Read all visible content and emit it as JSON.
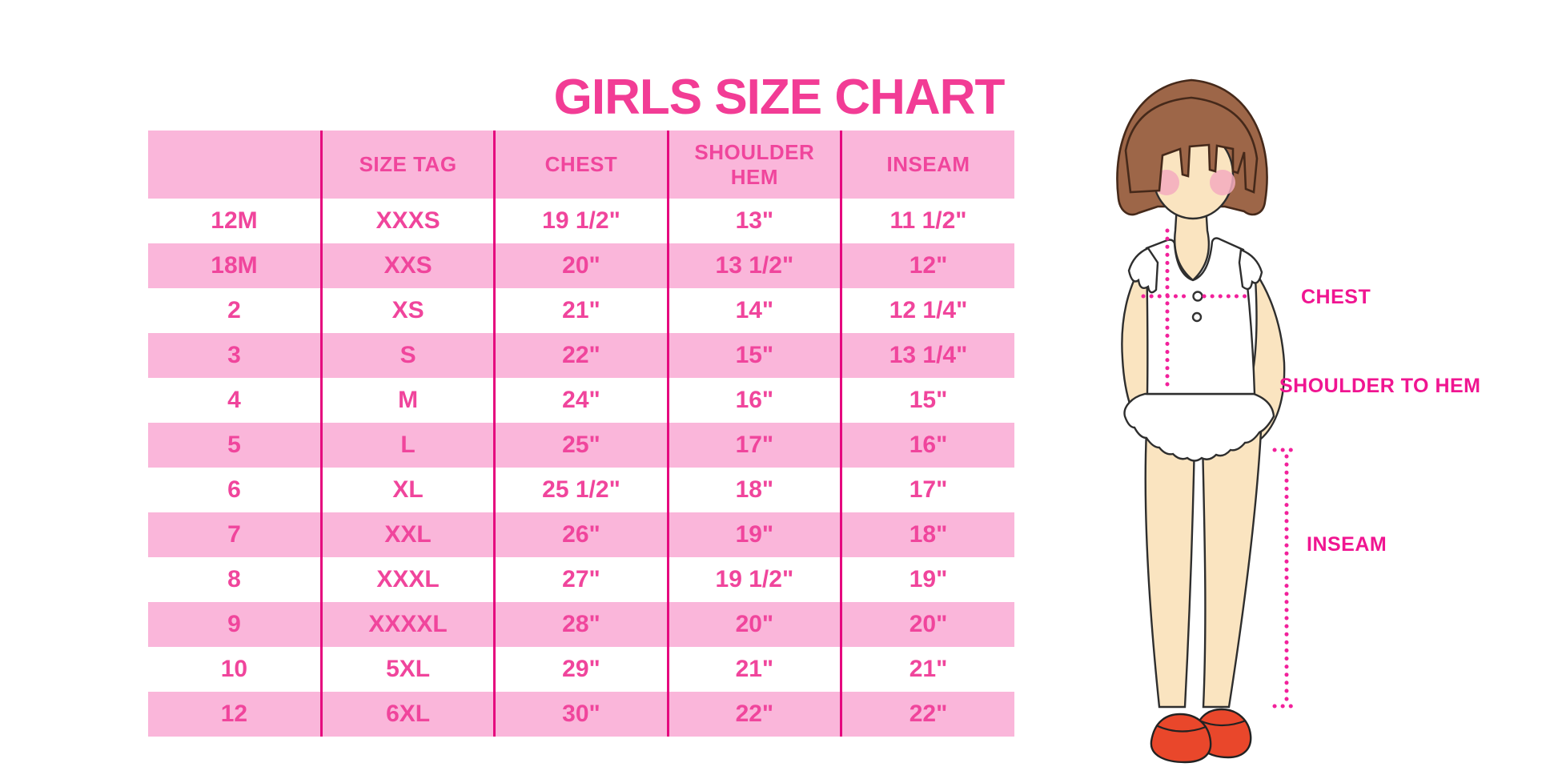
{
  "chart_data": {
    "type": "table",
    "title": "GIRLS SIZE CHART",
    "columns": [
      "",
      "SIZE TAG",
      "CHEST",
      "SHOULDER HEM",
      "INSEAM"
    ],
    "rows": [
      [
        "12M",
        "XXXS",
        "19 1/2\"",
        "13\"",
        "11 1/2\""
      ],
      [
        "18M",
        "XXS",
        "20\"",
        "13 1/2\"",
        "12\""
      ],
      [
        "2",
        "XS",
        "21\"",
        "14\"",
        "12 1/4\""
      ],
      [
        "3",
        "S",
        "22\"",
        "15\"",
        "13 1/4\""
      ],
      [
        "4",
        "M",
        "24\"",
        "16\"",
        "15\""
      ],
      [
        "5",
        "L",
        "25\"",
        "17\"",
        "16\""
      ],
      [
        "6",
        "XL",
        "25 1/2\"",
        "18\"",
        "17\""
      ],
      [
        "7",
        "XXL",
        "26\"",
        "19\"",
        "18\""
      ],
      [
        "8",
        "XXXL",
        "27\"",
        "19 1/2\"",
        "19\""
      ],
      [
        "9",
        "XXXXL",
        "28\"",
        "20\"",
        "20\""
      ],
      [
        "10",
        "5XL",
        "29\"",
        "21\"",
        "21\""
      ],
      [
        "12",
        "6XL",
        "30\"",
        "22\"",
        "22\""
      ]
    ],
    "legend_position": "none",
    "grid": "vertical-dividers-only"
  },
  "figure": {
    "chest_label": "CHEST",
    "shoulder_to_hem_label": "SHOULDER TO HEM",
    "inseam_label": "INSEAM"
  },
  "colors": {
    "title_pink": "#F23C95",
    "row_pink": "#FAB6DA",
    "cell_text_pink": "#F0459C",
    "divider_pink": "#E5087E",
    "label_magenta": "#F01591",
    "dot_magenta": "#F2219B",
    "hair_brown": "#9D6648",
    "skin": "#FAE4C0",
    "blush": "#F3ABBE",
    "shoe_red": "#E9472B"
  }
}
